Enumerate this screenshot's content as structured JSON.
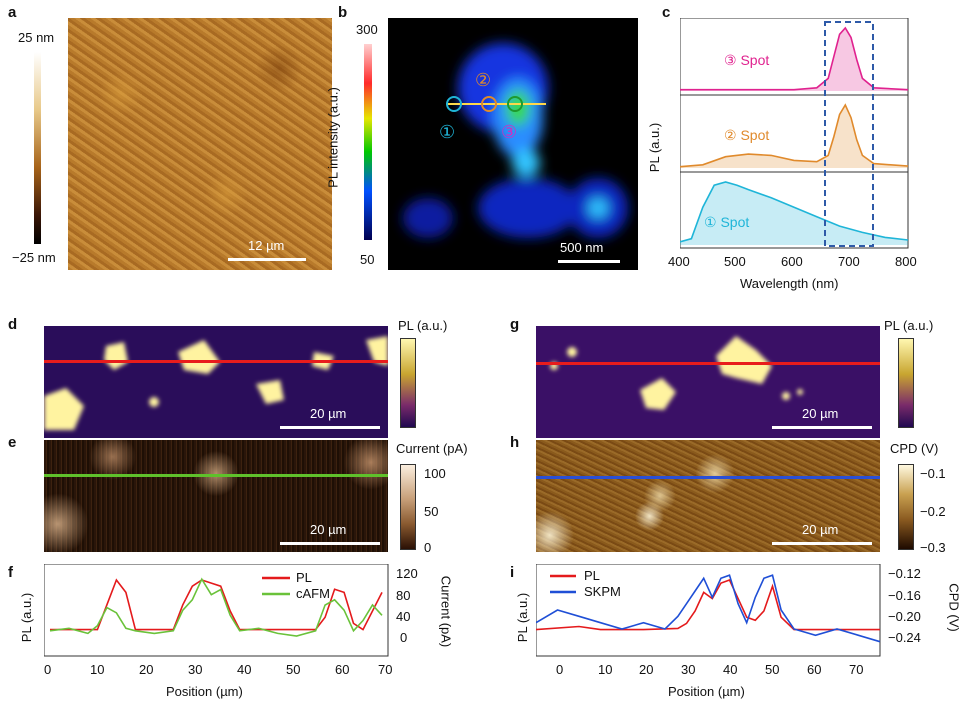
{
  "panels": {
    "a": {
      "label": "a",
      "scale_top": "25 nm",
      "scale_bottom": "−25 nm",
      "scalebar": "12 µm"
    },
    "b": {
      "label": "b",
      "colorbar_title": "PL intensity (a.u.)",
      "colorbar_top": "300",
      "colorbar_bottom": "50",
      "scalebar": "500 nm",
      "markers": [
        "①",
        "②",
        "③"
      ],
      "marker_colors": [
        "#1fb5d8",
        "#e08a2c",
        "#d02fc0"
      ]
    },
    "c": {
      "label": "c",
      "ylabel": "PL (a.u.)",
      "xlabel": "Wavelength (nm)",
      "xticks": [
        "400",
        "500",
        "600",
        "700",
        "800"
      ],
      "spots": [
        {
          "label": "③ Spot",
          "color": "#e0228f"
        },
        {
          "label": "② Spot",
          "color": "#e08a2c"
        },
        {
          "label": "① Spot",
          "color": "#1fb5d8"
        }
      ]
    },
    "d": {
      "label": "d",
      "colorbar_title": "PL (a.u.)",
      "scalebar": "20 µm"
    },
    "e": {
      "label": "e",
      "colorbar_title": "Current (pA)",
      "colorbar_ticks": [
        "100",
        "50",
        "0"
      ],
      "scalebar": "20 µm"
    },
    "f": {
      "label": "f",
      "ylabel_left": "PL (a.u.)",
      "ylabel_right": "Current (pA)",
      "xlabel": "Position (µm)",
      "xticks": [
        "0",
        "10",
        "20",
        "30",
        "40",
        "50",
        "60",
        "70"
      ],
      "yticks_right": [
        "120",
        "80",
        "40",
        "0"
      ],
      "legend": [
        "PL",
        "cAFM"
      ]
    },
    "g": {
      "label": "g",
      "colorbar_title": "PL (a.u.)",
      "scalebar": "20 µm"
    },
    "h": {
      "label": "h",
      "colorbar_title": "CPD (V)",
      "colorbar_ticks": [
        "−0.1",
        "−0.2",
        "−0.3"
      ],
      "scalebar": "20 µm"
    },
    "i": {
      "label": "i",
      "ylabel_left": "PL (a.u.)",
      "ylabel_right": "CPD (V)",
      "xlabel": "Position (µm)",
      "xticks": [
        "0",
        "10",
        "20",
        "30",
        "40",
        "50",
        "60",
        "70"
      ],
      "yticks_right": [
        "−0.12",
        "−0.16",
        "−0.20",
        "−0.24"
      ],
      "legend": [
        "PL",
        "SKPM"
      ]
    }
  },
  "chart_data": [
    {
      "type": "line",
      "panel": "c",
      "x_range": [
        400,
        800
      ],
      "series": [
        {
          "name": "③ Spot",
          "color": "#e0228f",
          "x": [
            400,
            600,
            640,
            660,
            670,
            680,
            690,
            700,
            710,
            720,
            740,
            800
          ],
          "y": [
            0.02,
            0.02,
            0.05,
            0.2,
            0.55,
            0.9,
            1.0,
            0.85,
            0.5,
            0.2,
            0.05,
            0.02
          ]
        },
        {
          "name": "② Spot",
          "color": "#e08a2c",
          "x": [
            400,
            440,
            480,
            520,
            560,
            600,
            640,
            660,
            670,
            680,
            690,
            700,
            710,
            720,
            740,
            800
          ],
          "y": [
            0.02,
            0.05,
            0.18,
            0.22,
            0.2,
            0.12,
            0.1,
            0.2,
            0.5,
            0.85,
            1.0,
            0.8,
            0.45,
            0.2,
            0.07,
            0.03
          ]
        },
        {
          "name": "① Spot",
          "color": "#1fb5d8",
          "x": [
            400,
            420,
            440,
            460,
            480,
            500,
            520,
            560,
            600,
            640,
            680,
            720,
            760,
            800
          ],
          "y": [
            0.05,
            0.1,
            0.6,
            0.95,
            1.0,
            0.95,
            0.88,
            0.75,
            0.6,
            0.45,
            0.3,
            0.2,
            0.12,
            0.08
          ]
        }
      ]
    },
    {
      "type": "line",
      "panel": "f",
      "x_range": [
        0,
        70
      ],
      "series": [
        {
          "name": "PL",
          "color": "#e41a1c",
          "x": [
            0,
            10,
            12,
            14,
            16,
            18,
            26,
            28,
            30,
            32,
            34,
            36,
            38,
            40,
            56,
            58,
            60,
            62,
            64,
            66,
            68,
            70
          ],
          "y": [
            0.2,
            0.2,
            0.6,
            1.0,
            0.8,
            0.2,
            0.2,
            0.6,
            0.9,
            1.0,
            0.95,
            0.9,
            0.5,
            0.2,
            0.2,
            0.4,
            0.85,
            0.8,
            0.3,
            0.2,
            0.5,
            0.8
          ]
        },
        {
          "name": "cAFM",
          "color": "#6ac23a",
          "x": [
            0,
            4,
            8,
            10,
            12,
            14,
            16,
            18,
            22,
            26,
            28,
            30,
            32,
            34,
            36,
            38,
            40,
            44,
            48,
            52,
            56,
            58,
            60,
            62,
            64,
            66,
            68,
            70
          ],
          "y": [
            10,
            15,
            5,
            20,
            55,
            45,
            15,
            10,
            5,
            10,
            50,
            70,
            110,
            80,
            90,
            40,
            10,
            15,
            5,
            0,
            10,
            60,
            70,
            50,
            10,
            30,
            60,
            40
          ]
        }
      ]
    },
    {
      "type": "line",
      "panel": "i",
      "x_range": [
        -5,
        75
      ],
      "series": [
        {
          "name": "PL",
          "color": "#e41a1c",
          "x": [
            -5,
            5,
            10,
            20,
            28,
            30,
            32,
            34,
            36,
            38,
            40,
            42,
            44,
            46,
            48,
            50,
            52,
            55,
            60,
            70,
            75
          ],
          "y": [
            0.2,
            0.25,
            0.2,
            0.2,
            0.22,
            0.3,
            0.5,
            0.8,
            0.7,
            0.95,
            1.0,
            0.7,
            0.4,
            0.35,
            0.5,
            0.9,
            0.4,
            0.2,
            0.2,
            0.2,
            0.2
          ]
        },
        {
          "name": "SKPM",
          "color": "#1f4fd6",
          "x": [
            -5,
            0,
            5,
            10,
            15,
            20,
            25,
            28,
            30,
            32,
            34,
            36,
            38,
            40,
            42,
            44,
            46,
            48,
            50,
            52,
            55,
            60,
            65,
            70,
            75
          ],
          "y": [
            -0.2,
            -0.18,
            -0.19,
            -0.2,
            -0.21,
            -0.2,
            -0.21,
            -0.19,
            -0.17,
            -0.15,
            -0.13,
            -0.16,
            -0.13,
            -0.125,
            -0.17,
            -0.2,
            -0.16,
            -0.13,
            -0.125,
            -0.18,
            -0.21,
            -0.22,
            -0.21,
            -0.22,
            -0.23
          ]
        }
      ]
    }
  ]
}
